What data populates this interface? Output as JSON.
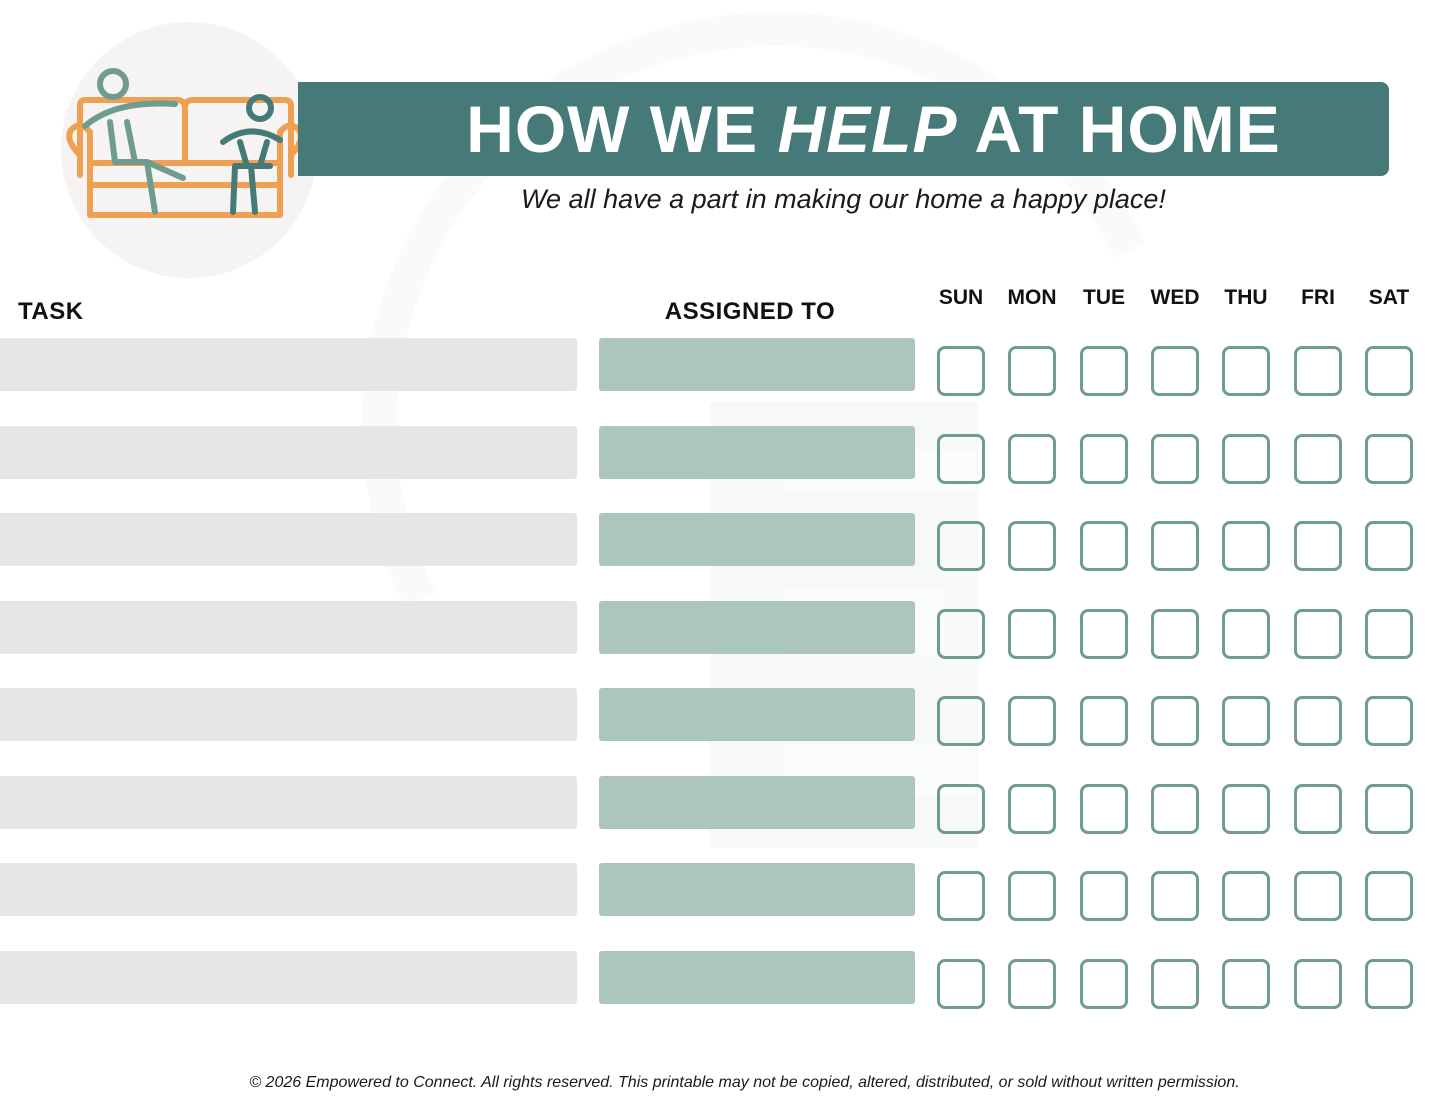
{
  "header": {
    "title_part1": "HOW WE ",
    "title_emphasis": "HELP",
    "title_part2": " AT HOME",
    "subtitle": "We all have a part in making our home a happy place!",
    "banner_color": "#457a78"
  },
  "table": {
    "task_header": "TASK",
    "assigned_header": "ASSIGNED TO",
    "days": [
      "SUN",
      "MON",
      "TUE",
      "WED",
      "THU",
      "FRI",
      "SAT"
    ],
    "row_count": 8,
    "rows": [
      {
        "task": "",
        "assigned": ""
      },
      {
        "task": "",
        "assigned": ""
      },
      {
        "task": "",
        "assigned": ""
      },
      {
        "task": "",
        "assigned": ""
      },
      {
        "task": "",
        "assigned": ""
      },
      {
        "task": "",
        "assigned": ""
      },
      {
        "task": "",
        "assigned": ""
      },
      {
        "task": "",
        "assigned": ""
      }
    ],
    "colors": {
      "task_bar": "#e6e6e6",
      "assigned_bar": "#a9c3bc",
      "checkbox_border": "#6f9b90"
    }
  },
  "illustration": {
    "icon": "family-on-couch-icon",
    "couch_color": "#f0a052",
    "figure_colors": [
      "#6f9b90",
      "#457a78"
    ]
  },
  "footer": {
    "copyright": "© 2026 Empowered to Connect. All rights reserved. This printable may not be copied, altered, distributed, or sold without written permission."
  }
}
